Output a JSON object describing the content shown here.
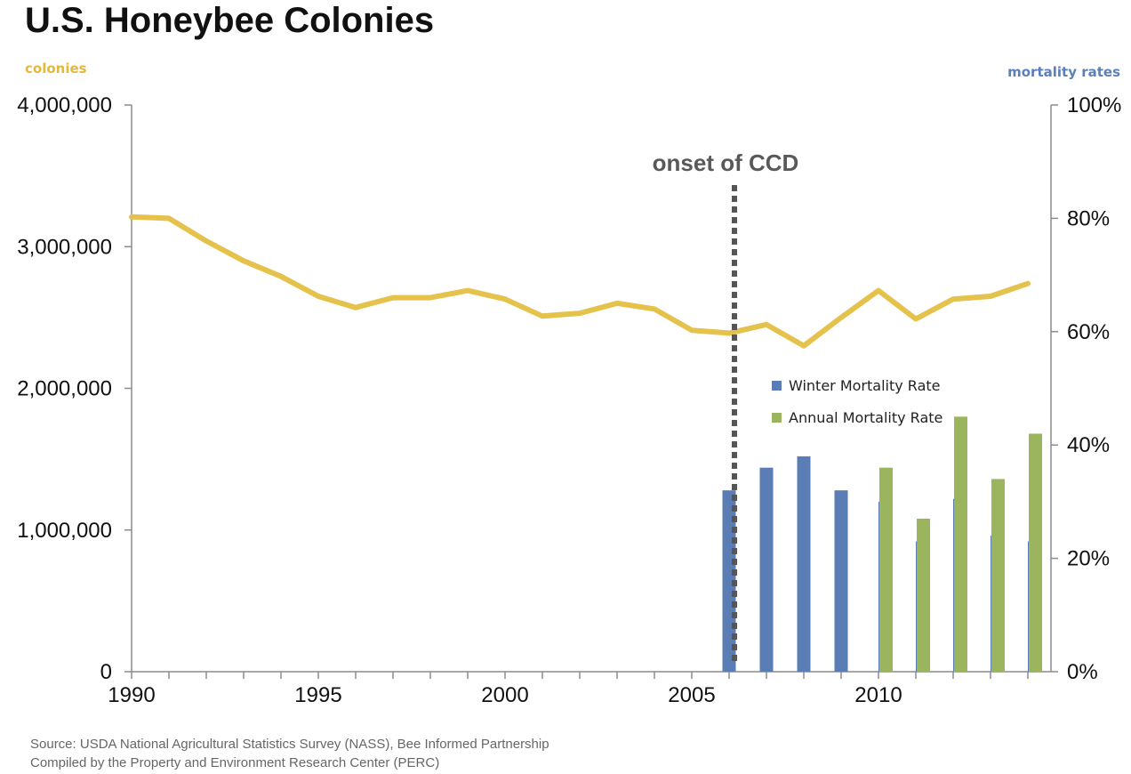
{
  "chart_data": {
    "type": "line+bar",
    "title": "U.S. Honeybee Colonies",
    "left_axis_label": "colonies",
    "right_axis_label": "mortality rates",
    "left_ylim": [
      0,
      4000000
    ],
    "left_ticks": [
      "0",
      "1,000,000",
      "2,000,000",
      "3,000,000",
      "4,000,000"
    ],
    "right_ylim": [
      0,
      100
    ],
    "right_ticks": [
      "0%",
      "20%",
      "40%",
      "60%",
      "80%",
      "100%"
    ],
    "xlim": [
      1990,
      2014
    ],
    "x_ticks": [
      "1990",
      "1995",
      "2000",
      "2005",
      "2010"
    ],
    "colors": {
      "colonies": "#E4C24C",
      "winter": "#5A7DB5",
      "annual": "#9BB55E",
      "annotation_line": "#555555",
      "axis_label_left": "#E4B83A",
      "axis_label_right": "#5B7FB8"
    },
    "colonies_series": {
      "x": [
        1990,
        1991,
        1992,
        1993,
        1994,
        1995,
        1996,
        1997,
        1998,
        1999,
        2000,
        2001,
        2002,
        2003,
        2004,
        2005,
        2006,
        2007,
        2008,
        2009,
        2010,
        2011,
        2012,
        2013,
        2014
      ],
      "values": [
        3210000,
        3200000,
        3040000,
        2900000,
        2790000,
        2650000,
        2570000,
        2640000,
        2640000,
        2690000,
        2630000,
        2510000,
        2530000,
        2600000,
        2560000,
        2410000,
        2390000,
        2450000,
        2300000,
        2500000,
        2690000,
        2490000,
        2630000,
        2650000,
        2740000
      ]
    },
    "bar_series": [
      {
        "name": "Winter Mortality Rate",
        "x": [
          2006,
          2007,
          2008,
          2009,
          2010,
          2011,
          2012,
          2013,
          2014
        ],
        "values": [
          32,
          36,
          38,
          32,
          30,
          23,
          30.5,
          24,
          23
        ]
      },
      {
        "name": "Annual Mortality Rate",
        "x": [
          2010,
          2011,
          2012,
          2013,
          2014
        ],
        "values": [
          36,
          27,
          45,
          34,
          42
        ]
      }
    ],
    "legend_position": "right-middle",
    "annotation": {
      "text": "onset of CCD",
      "x": 2006
    },
    "source_lines": [
      "Source: USDA National Agricultural Statistics Survey (NASS), Bee Informed Partnership",
      "Compiled by the Property and Environment Research Center (PERC)"
    ]
  }
}
